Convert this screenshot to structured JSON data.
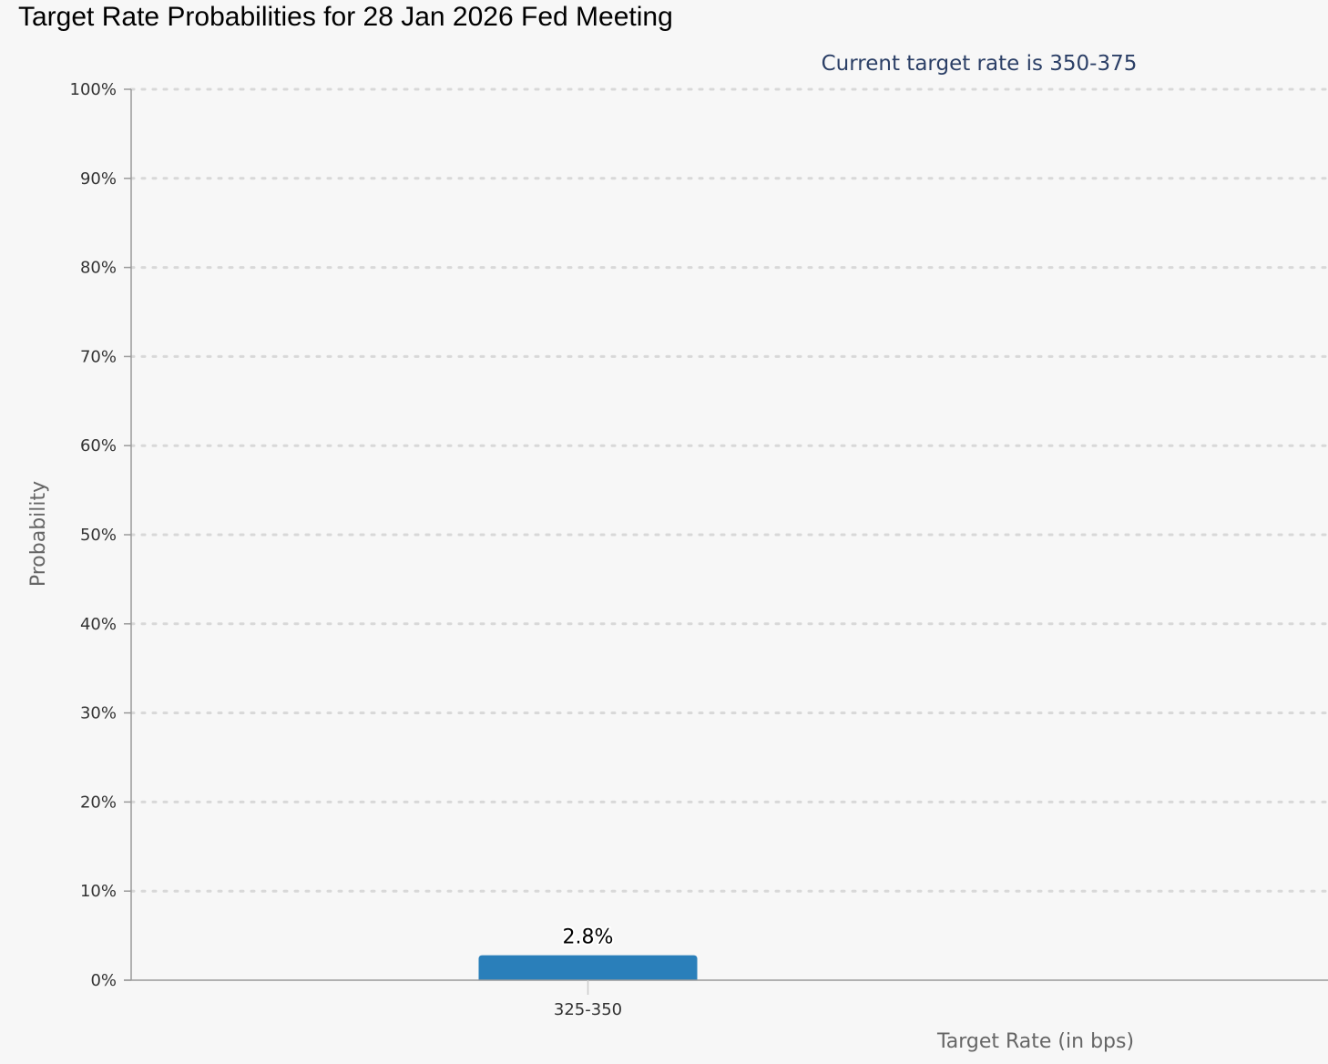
{
  "page": {
    "title": "Target Rate Probabilities for 28 Jan 2026 Fed Meeting"
  },
  "chart_data": {
    "type": "bar",
    "subtitle": "Current target rate is 350-375",
    "categories": [
      "325-350"
    ],
    "values": [
      2.8
    ],
    "value_labels": [
      "2.8%"
    ],
    "xlabel": "Target Rate (in bps)",
    "ylabel": "Probability",
    "ylim": [
      0,
      100
    ],
    "yticks": [
      0,
      10,
      20,
      30,
      40,
      50,
      60,
      70,
      80,
      90,
      100
    ],
    "ytick_labels": [
      "0%",
      "10%",
      "20%",
      "30%",
      "40%",
      "50%",
      "60%",
      "70%",
      "80%",
      "90%",
      "100%"
    ],
    "grid": true,
    "legend": "none",
    "colors": {
      "bar": "#2a7fba",
      "subtitle": "#2b3f66",
      "grid": "#d8d8d8",
      "axis": "#9a9a9a"
    }
  }
}
